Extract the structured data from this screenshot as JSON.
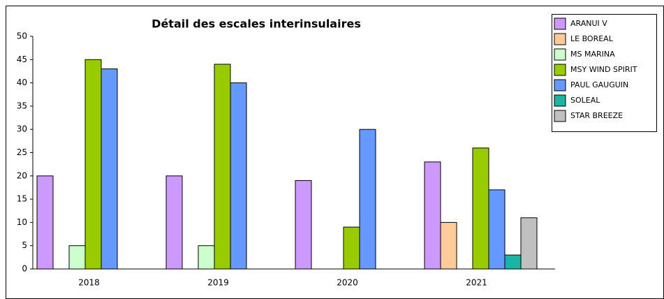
{
  "chart_data": {
    "type": "bar",
    "title": "Détail des escales interinsulaires",
    "categories": [
      "2018",
      "2019",
      "2020",
      "2021"
    ],
    "series": [
      {
        "name": "ARANUI V",
        "color": "#cc99ff",
        "values": [
          20,
          20,
          19,
          23
        ]
      },
      {
        "name": "LE BOREAL",
        "color": "#ffcc99",
        "values": [
          0,
          0,
          0,
          10
        ]
      },
      {
        "name": "MS MARINA",
        "color": "#ccffcc",
        "values": [
          5,
          5,
          0,
          0
        ]
      },
      {
        "name": "MSY WIND SPIRIT",
        "color": "#99cc00",
        "values": [
          45,
          44,
          9,
          26
        ]
      },
      {
        "name": "PAUL GAUGUIN",
        "color": "#6699ff",
        "values": [
          43,
          40,
          30,
          17
        ]
      },
      {
        "name": "SOLEAL",
        "color": "#1ab5a5",
        "values": [
          0,
          0,
          0,
          3
        ]
      },
      {
        "name": "STAR BREEZE",
        "color": "#c0c0c0",
        "values": [
          0,
          0,
          0,
          11
        ]
      }
    ],
    "ylim": [
      0,
      50
    ],
    "yticks": [
      0,
      5,
      10,
      15,
      20,
      25,
      30,
      35,
      40,
      45,
      50
    ],
    "legend": "right"
  }
}
